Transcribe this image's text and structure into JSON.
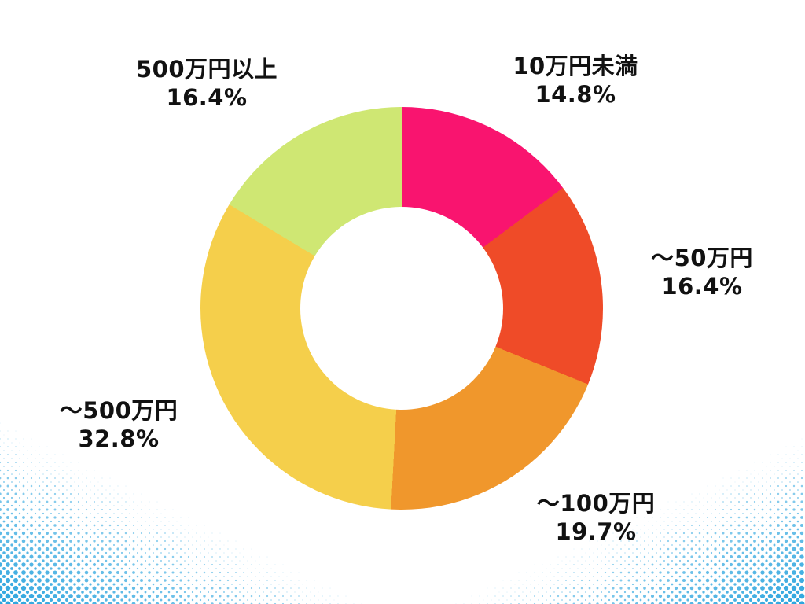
{
  "page": {
    "background": "#FFFFFF"
  },
  "decor": {
    "halftone_color": "#2AA4DE",
    "label_color": "#111111"
  },
  "chart_data": {
    "type": "pie",
    "subtype": "donut",
    "title": "",
    "legend_position": "none",
    "start_angle_deg": 0,
    "direction": "clockwise",
    "hole_ratio": 0.5,
    "categories": [
      "10万円未満",
      "〜50万円",
      "〜100万円",
      "〜500万円",
      "500万円以上"
    ],
    "values": [
      14.8,
      16.4,
      19.7,
      32.8,
      16.4
    ],
    "slices": [
      {
        "label": "10万円未満",
        "value": 14.8,
        "percent_text": "14.8%",
        "color": "#F9146F"
      },
      {
        "label": "〜50万円",
        "value": 16.4,
        "percent_text": "16.4%",
        "color": "#EF4B28"
      },
      {
        "label": "〜100万円",
        "value": 19.7,
        "percent_text": "19.7%",
        "color": "#F0972C"
      },
      {
        "label": "〜500万円",
        "value": 32.8,
        "percent_text": "32.8%",
        "color": "#F5CF4B"
      },
      {
        "label": "500万円以上",
        "value": 16.4,
        "percent_text": "16.4%",
        "color": "#CFE773"
      }
    ]
  }
}
